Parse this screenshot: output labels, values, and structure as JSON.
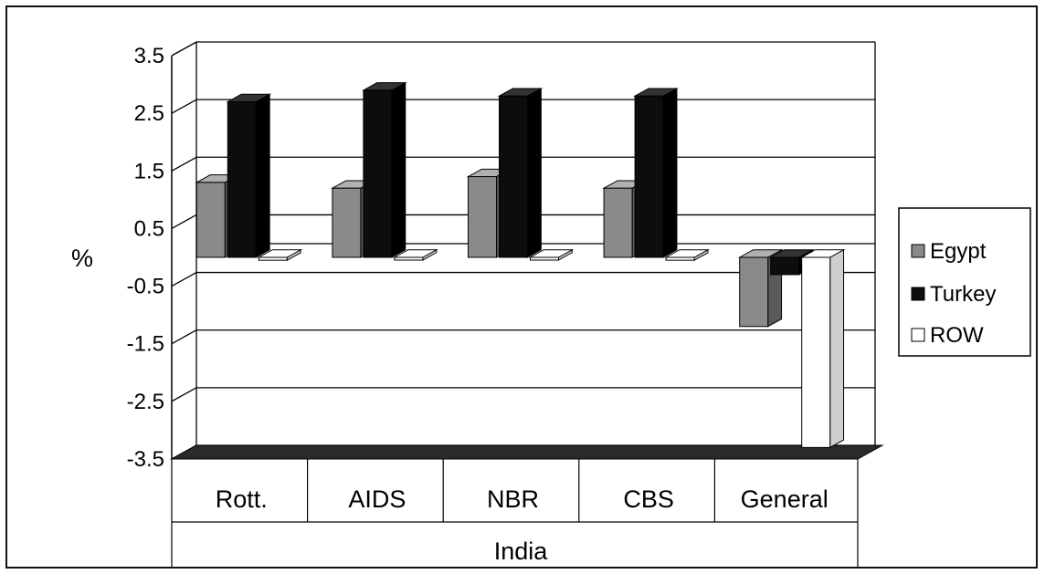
{
  "chart_data": {
    "type": "bar",
    "subtype": "3d-clustered",
    "categories": [
      "Rott.",
      "AIDS",
      "NBR",
      "CBS",
      "General"
    ],
    "series": [
      {
        "name": "Egypt",
        "values": [
          1.3,
          1.2,
          1.4,
          1.2,
          -1.2
        ],
        "color": "#8a8a8a"
      },
      {
        "name": "Turkey",
        "values": [
          2.7,
          2.9,
          2.8,
          2.8,
          -0.3
        ],
        "color": "#0d0d0d"
      },
      {
        "name": "ROW",
        "values": [
          -0.05,
          0.0,
          0.0,
          -0.05,
          -3.3
        ],
        "color": "#ffffff"
      }
    ],
    "ylabel": "%",
    "xlabel": "India",
    "ylim": [
      -3.5,
      3.5
    ],
    "yticks": [
      "3.5",
      "2.5",
      "1.5",
      "0.5",
      "-0.5",
      "-1.5",
      "-2.5",
      "-3.5"
    ],
    "grid": true,
    "legend_position": "right"
  }
}
